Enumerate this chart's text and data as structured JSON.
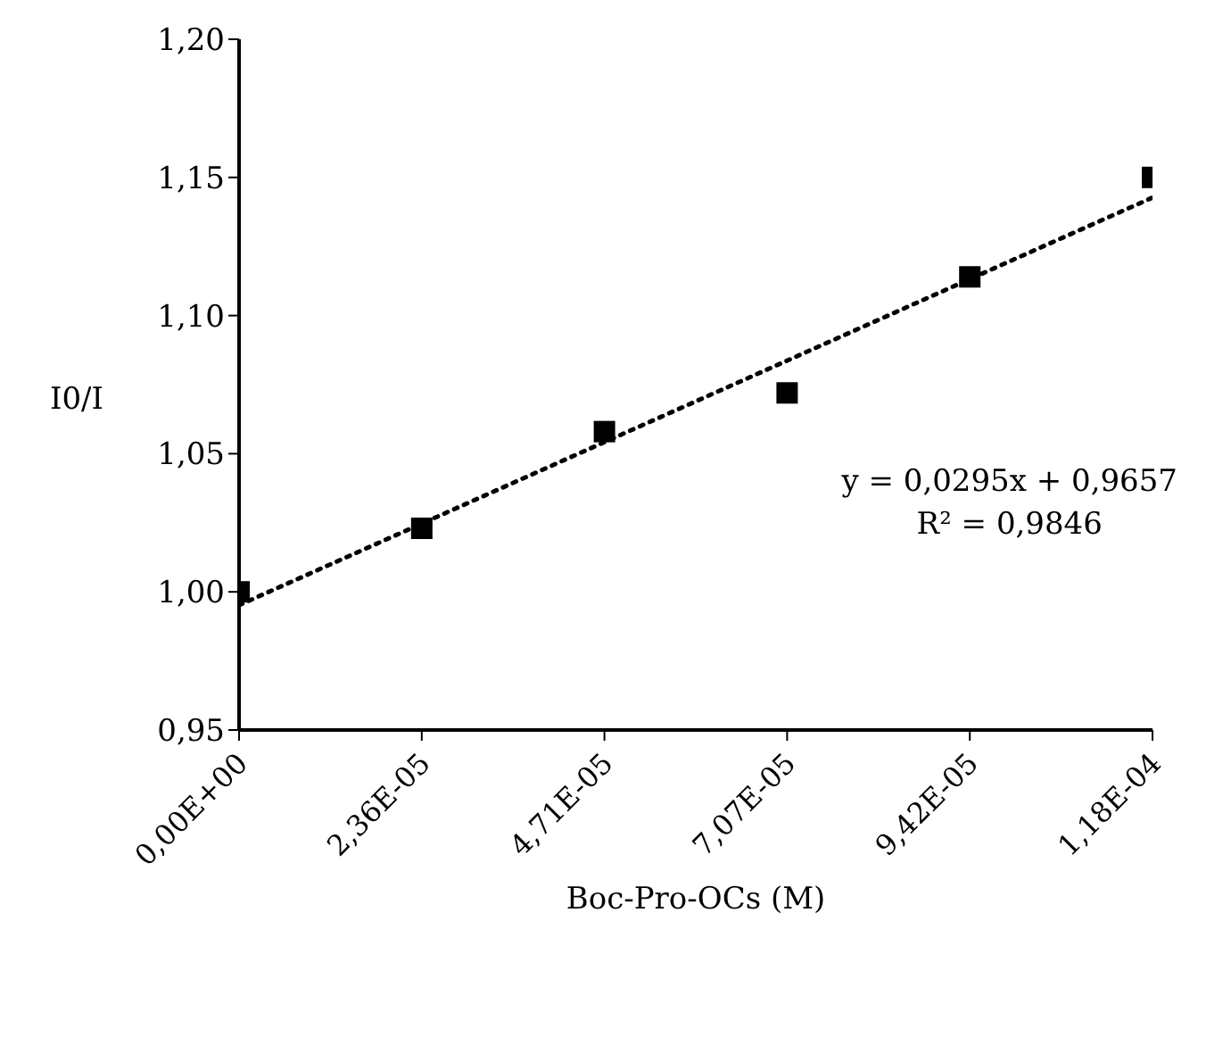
{
  "chart_data": {
    "type": "scatter",
    "xlabel": "Boc-Pro-OCs (M)",
    "ylabel": "I0/I",
    "marker": "square",
    "categories": [
      "0,00E+00",
      "2,36E-05",
      "4,71E-05",
      "7,07E-05",
      "9,42E-05",
      "1,18E-04"
    ],
    "ylim": [
      0.95,
      1.2
    ],
    "yticks": [
      {
        "value": 0.95,
        "label": "0,95"
      },
      {
        "value": 1,
        "label": "1,00"
      },
      {
        "value": 1.05,
        "label": "1,05"
      },
      {
        "value": 1.1,
        "label": "1,10"
      },
      {
        "value": 1.15,
        "label": "1,15"
      },
      {
        "value": 1.2,
        "label": "1,20"
      }
    ],
    "series": [
      {
        "color": "#000000",
        "values": [
          1.0,
          1.023,
          1.058,
          1.072,
          1.114,
          1.15
        ]
      },
      {
        "type": "line",
        "line_style": "dotted",
        "marker": "none",
        "color": "#000000",
        "values": [
          0.9952,
          1.0247,
          1.0542,
          1.0837,
          1.1132,
          1.1427
        ]
      }
    ],
    "annotations": [
      "y = 0,0295x + 0,9657",
      "R² = 0,9846"
    ]
  }
}
